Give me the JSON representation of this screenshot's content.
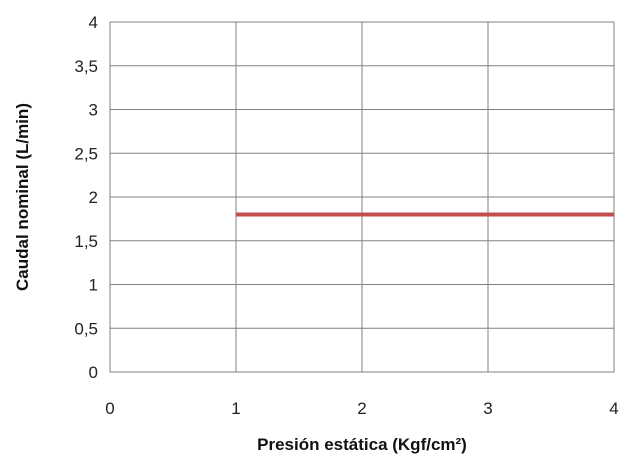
{
  "chart_data": {
    "type": "line",
    "title": "",
    "xlabel": "Presión estática (Kgf/cm²)",
    "ylabel": "Caudal nominal (L/min)",
    "xlim": [
      0,
      4
    ],
    "ylim": [
      0,
      4
    ],
    "x_ticks": [
      "0",
      "1",
      "2",
      "3",
      "4"
    ],
    "y_ticks": [
      "0",
      "0,5",
      "1",
      "1,5",
      "2",
      "2,5",
      "3",
      "3,5",
      "4"
    ],
    "grid": true,
    "legend": "none",
    "series": [
      {
        "color": "#c0504d",
        "x": [
          1,
          2,
          3,
          4
        ],
        "y": [
          1.8,
          1.8,
          1.8,
          1.8
        ]
      }
    ]
  }
}
